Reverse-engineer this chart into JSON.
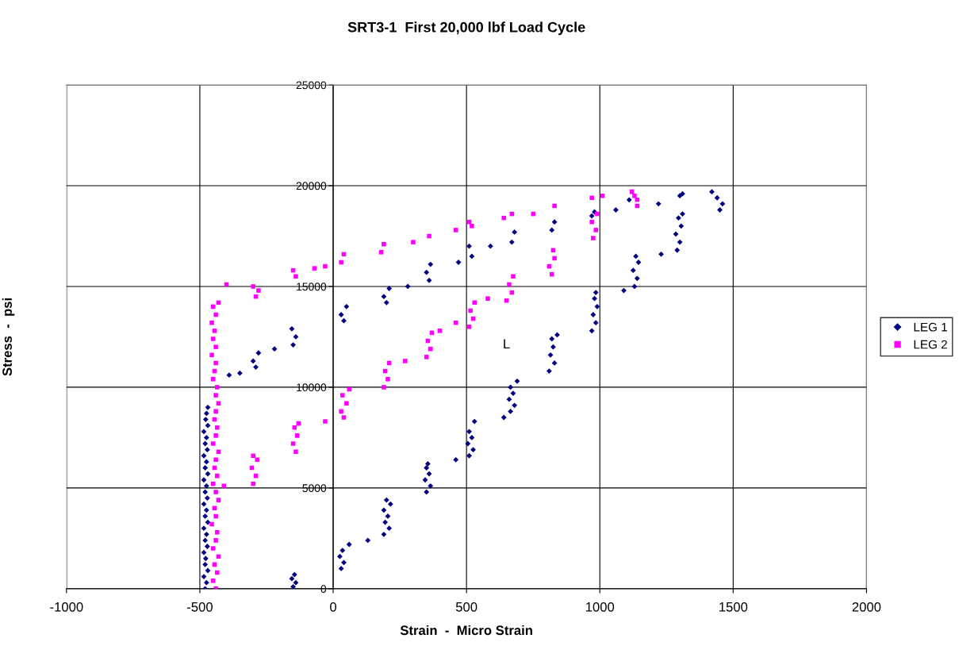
{
  "chart_data": {
    "type": "scatter",
    "title": "SRT3-1  First 20,000 lbf Load Cycle",
    "xlabel": "Strain  -  Micro Strain",
    "ylabel": "Stress  -  psi",
    "xlim": [
      -1000,
      2000
    ],
    "xticks": [
      -1000,
      -500,
      0,
      500,
      1000,
      1500,
      2000
    ],
    "ylim": [
      0,
      25000
    ],
    "yticks": [
      0,
      5000,
      10000,
      15000,
      20000,
      25000
    ],
    "grid": true,
    "legend": "right",
    "annotations": [
      "L"
    ],
    "series": [
      {
        "name": "LEG 1",
        "color": "#000080",
        "marker": "diamond",
        "x": [
          -480,
          -475,
          -485,
          -470,
          -480,
          -478,
          -485,
          -472,
          -480,
          -475,
          -485,
          -470,
          -480,
          -475,
          -485,
          -472,
          -480,
          -475,
          -485,
          -470,
          -480,
          -475,
          -485,
          -472,
          -480,
          -475,
          -485,
          -470,
          -478,
          -475,
          -470,
          -150,
          -140,
          -155,
          -145,
          30,
          40,
          25,
          35,
          60,
          130,
          190,
          210,
          195,
          205,
          190,
          215,
          200,
          350,
          365,
          345,
          360,
          350,
          355,
          460,
          510,
          525,
          505,
          520,
          510,
          530,
          640,
          665,
          680,
          660,
          675,
          665,
          690,
          810,
          830,
          815,
          825,
          820,
          840,
          970,
          985,
          975,
          990,
          980,
          985,
          1090,
          1130,
          1140,
          1125,
          1145,
          1135,
          1230,
          1290,
          1300,
          1285,
          1305,
          1295,
          1310,
          1450,
          1460,
          1440,
          1420,
          -390,
          -350,
          -290,
          -300,
          -280,
          -220,
          -150,
          -140,
          -155,
          40,
          30,
          50,
          200,
          190,
          210,
          280,
          360,
          350,
          365,
          470,
          520,
          510,
          590,
          670,
          680,
          820,
          830,
          970,
          980,
          1060,
          1110,
          1220,
          1300,
          1310
        ],
        "values": [
          0,
          300,
          600,
          900,
          1200,
          1500,
          1800,
          2100,
          2400,
          2700,
          3000,
          3300,
          3600,
          3900,
          4200,
          4500,
          4800,
          5100,
          5400,
          5700,
          6000,
          6300,
          6600,
          6900,
          7200,
          7500,
          7800,
          8100,
          8400,
          8700,
          9000,
          100,
          300,
          500,
          700,
          1000,
          1300,
          1600,
          1900,
          2200,
          2400,
          2700,
          3000,
          3300,
          3600,
          3900,
          4200,
          4400,
          4800,
          5100,
          5400,
          5700,
          6000,
          6200,
          6400,
          6600,
          6900,
          7200,
          7500,
          7800,
          8300,
          8500,
          8800,
          9100,
          9400,
          9700,
          10000,
          10300,
          10800,
          11200,
          11600,
          12000,
          12400,
          12600,
          12800,
          13200,
          13600,
          14000,
          14400,
          14700,
          14800,
          15000,
          15400,
          15800,
          16200,
          16500,
          16600,
          16800,
          17200,
          17600,
          18000,
          18400,
          18600,
          18800,
          19100,
          19400,
          19700,
          10600,
          10700,
          11000,
          11300,
          11700,
          11900,
          12100,
          12500,
          12900,
          13300,
          13600,
          14000,
          14200,
          14500,
          14900,
          15000,
          15300,
          15700,
          16100,
          16200,
          16500,
          17000,
          17000,
          17200,
          17700,
          17800,
          18200,
          18500,
          18700,
          18800,
          19300,
          19100,
          19500,
          19600
        ]
      },
      {
        "name": "LEG 2",
        "color": "#ff00ff",
        "marker": "square",
        "x": [
          -440,
          -450,
          -435,
          -445,
          -430,
          -450,
          -440,
          -435,
          -455,
          -440,
          -445,
          -430,
          -440,
          -450,
          -435,
          -445,
          -440,
          -430,
          -450,
          -440,
          -435,
          -445,
          -440,
          -430,
          -440,
          -435,
          -450,
          -445,
          -440,
          -455,
          -440,
          -450,
          -445,
          -455,
          -440,
          -450,
          -430,
          -410,
          -300,
          -290,
          -305,
          -285,
          -300,
          -140,
          -150,
          -135,
          -145,
          -130,
          -30,
          40,
          30,
          50,
          35,
          60,
          190,
          205,
          195,
          210,
          270,
          350,
          365,
          355,
          370,
          400,
          460,
          510,
          525,
          515,
          530,
          580,
          650,
          670,
          660,
          675,
          820,
          810,
          830,
          825,
          975,
          985,
          970,
          990,
          1130,
          1140,
          -400,
          -290,
          -280,
          -300,
          -140,
          -150,
          -70,
          -30,
          30,
          40,
          180,
          190,
          300,
          360,
          460,
          520,
          510,
          640,
          670,
          750,
          830,
          970,
          1010,
          1120,
          1140
        ],
        "values": [
          0,
          400,
          800,
          1200,
          1600,
          2000,
          2400,
          2800,
          3200,
          3600,
          4000,
          4400,
          4800,
          5200,
          5600,
          6000,
          6400,
          6800,
          7200,
          7600,
          8000,
          8400,
          8800,
          9200,
          9600,
          10000,
          10400,
          10800,
          11200,
          11600,
          12000,
          12400,
          12800,
          13200,
          13600,
          14000,
          14200,
          5100,
          5200,
          5600,
          6000,
          6400,
          6600,
          6800,
          7200,
          7600,
          8000,
          8200,
          8300,
          8500,
          8800,
          9200,
          9600,
          9900,
          10000,
          10400,
          10800,
          11200,
          11300,
          11500,
          11900,
          12300,
          12700,
          12800,
          13200,
          13000,
          13400,
          13800,
          14200,
          14400,
          14300,
          14700,
          15100,
          15500,
          15600,
          16000,
          16400,
          16800,
          17400,
          17800,
          18200,
          18600,
          19500,
          19000,
          15100,
          14500,
          14800,
          15000,
          15500,
          15800,
          15900,
          16000,
          16200,
          16600,
          16700,
          17100,
          17200,
          17500,
          17800,
          18000,
          18200,
          18400,
          18600,
          18600,
          19000,
          19400,
          19500,
          19700,
          19300
        ]
      }
    ]
  }
}
